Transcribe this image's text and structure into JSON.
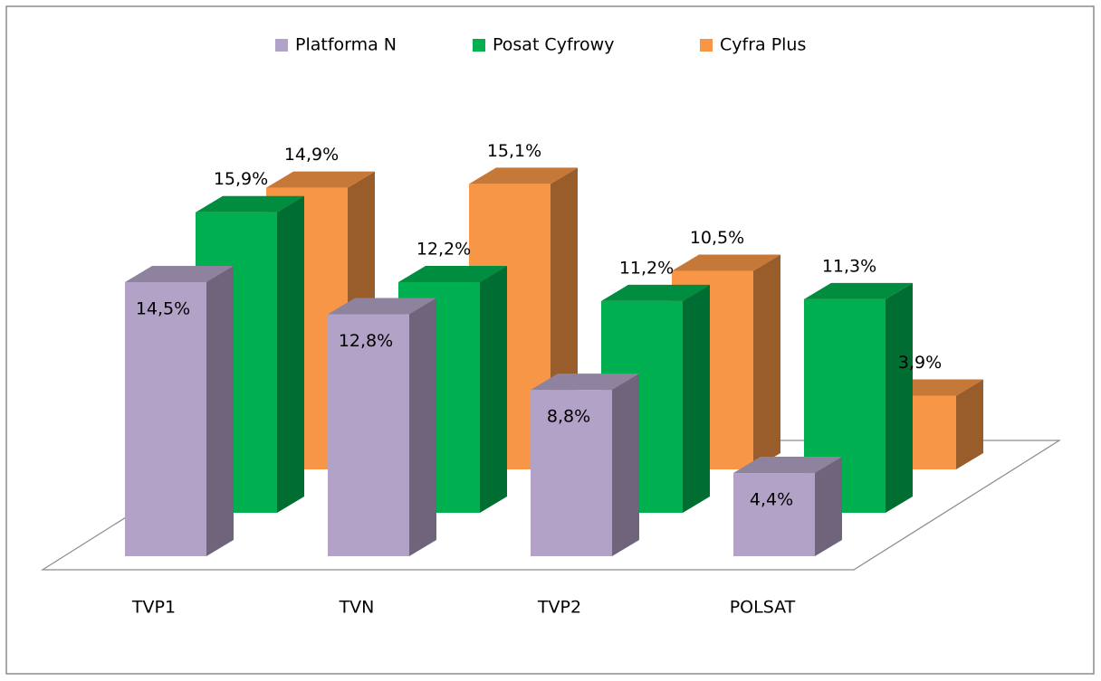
{
  "chart_data": {
    "type": "bar3d",
    "categories": [
      "TVP1",
      "TVN",
      "TVP2",
      "POLSAT"
    ],
    "series": [
      {
        "name": "Platforma N",
        "color": "#b3a2c7",
        "values": [
          14.5,
          12.8,
          8.8,
          4.4
        ],
        "value_labels": [
          "14,5%",
          "12,8%",
          "8,8%",
          "4,4%"
        ]
      },
      {
        "name": "Posat Cyfrowy",
        "color": "#00b050",
        "values": [
          15.9,
          12.2,
          11.2,
          11.3
        ],
        "value_labels": [
          "15,9%",
          "12,2%",
          "11,2%",
          "11,3%"
        ]
      },
      {
        "name": "Cyfra Plus",
        "color": "#f79646",
        "values": [
          14.9,
          15.1,
          10.5,
          3.9
        ],
        "value_labels": [
          "14,9%",
          "15,1%",
          "10,5%",
          "3,9%"
        ]
      }
    ],
    "legend": "top"
  }
}
